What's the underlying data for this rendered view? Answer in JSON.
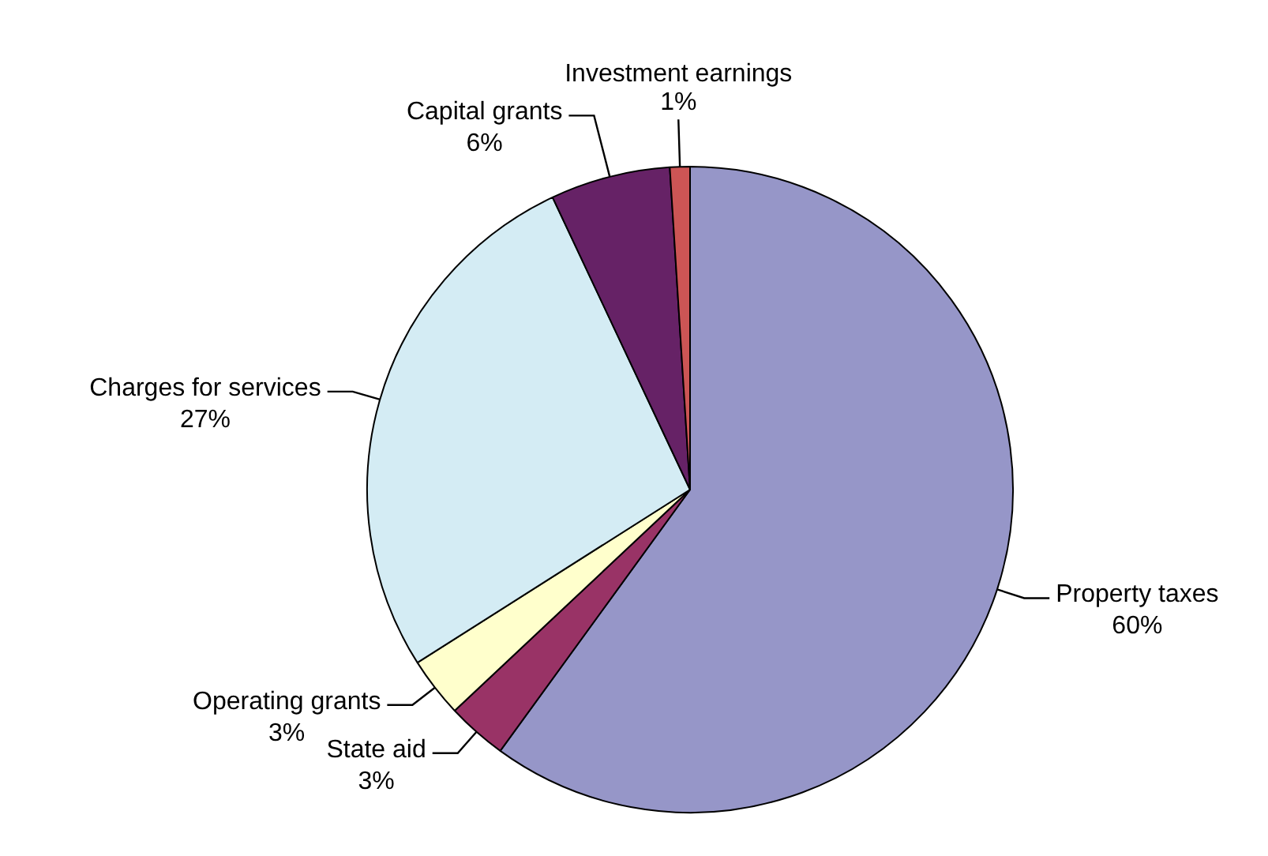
{
  "chart_data": {
    "type": "pie",
    "categories": [
      "Property taxes",
      "State aid",
      "Operating grants",
      "Charges for services",
      "Capital grants",
      "Investment earnings"
    ],
    "values": [
      60,
      3,
      3,
      27,
      6,
      1
    ],
    "value_labels": [
      "60%",
      "3%",
      "3%",
      "27%",
      "6%",
      "1%"
    ],
    "colors": [
      "#9696c8",
      "#993366",
      "#ffffcc",
      "#d4ecf4",
      "#662266",
      "#cc5555"
    ],
    "legend": false
  }
}
